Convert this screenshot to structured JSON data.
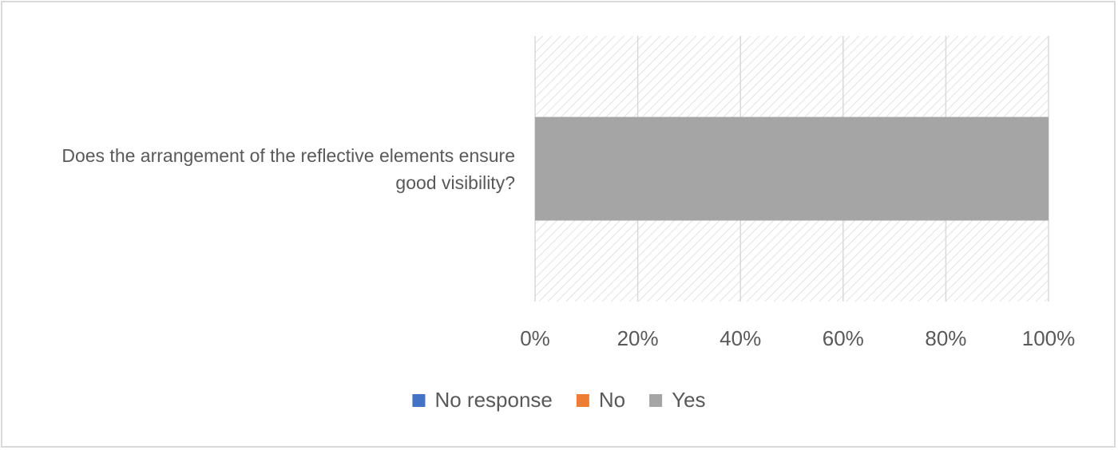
{
  "chart_data": {
    "type": "stacked-bar-horizontal",
    "categories": [
      "Does the arrangement of the reflective elements ensure good visibility?"
    ],
    "series": [
      {
        "name": "No response",
        "color": "#4472c4",
        "values": [
          0
        ]
      },
      {
        "name": "No",
        "color": "#ed7d31",
        "values": [
          0
        ]
      },
      {
        "name": "Yes",
        "color": "#a5a5a5",
        "values": [
          100
        ]
      }
    ],
    "xlim": [
      0,
      100
    ],
    "xticks": [
      {
        "value": 0,
        "label": "0%"
      },
      {
        "value": 20,
        "label": "20%"
      },
      {
        "value": 40,
        "label": "40%"
      },
      {
        "value": 60,
        "label": "60%"
      },
      {
        "value": 80,
        "label": "80%"
      },
      {
        "value": 100,
        "label": "100%"
      }
    ],
    "grid": true,
    "legend": "bottom"
  }
}
